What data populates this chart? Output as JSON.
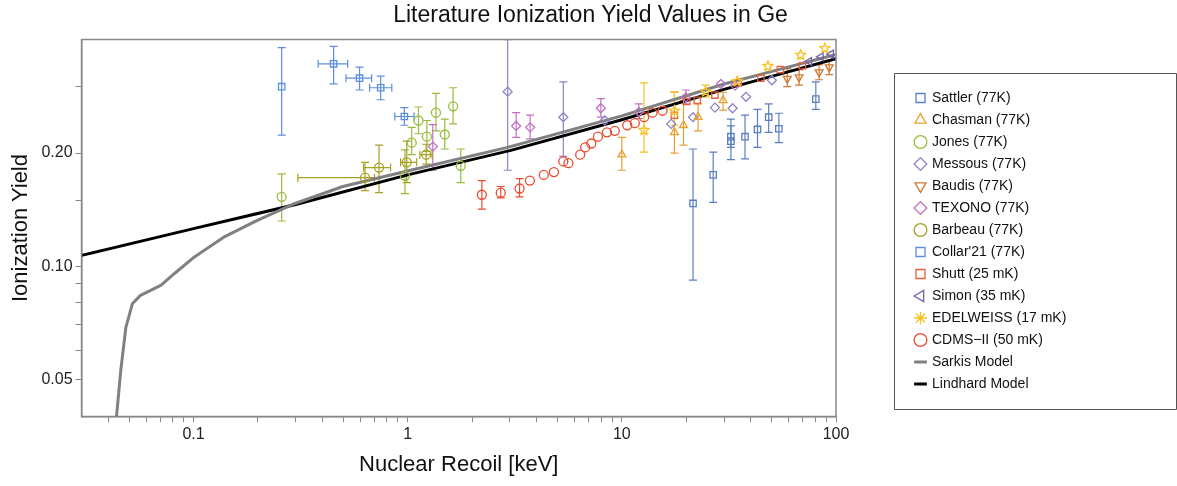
{
  "chart_data": {
    "type": "scatter",
    "title": "Literature Ionization Yield Values in Ge",
    "xlabel": "Nuclear Recoil [keV]",
    "ylabel": "Ionization Yield",
    "log": "xy",
    "grid": false,
    "legend": "right",
    "xlim": [
      0.03,
      100
    ],
    "xticks": [
      {
        "value": 0.04,
        "label": null
      },
      {
        "value": 0.05,
        "label": null
      },
      {
        "value": 0.06,
        "label": null
      },
      {
        "value": 0.07,
        "label": null
      },
      {
        "value": 0.08,
        "label": null
      },
      {
        "value": 0.09,
        "label": null
      },
      0.1,
      {
        "value": 0.2,
        "label": null
      },
      {
        "value": 0.3,
        "label": null
      },
      {
        "value": 0.4,
        "label": null
      },
      {
        "value": 0.5,
        "label": null
      },
      {
        "value": 0.6,
        "label": null
      },
      {
        "value": 0.7,
        "label": null
      },
      {
        "value": 0.8,
        "label": null
      },
      {
        "value": 0.9,
        "label": null
      },
      1,
      {
        "value": 2,
        "label": null
      },
      {
        "value": 3,
        "label": null
      },
      {
        "value": 4,
        "label": null
      },
      {
        "value": 5,
        "label": null
      },
      {
        "value": 6,
        "label": null
      },
      {
        "value": 7,
        "label": null
      },
      {
        "value": 8,
        "label": null
      },
      {
        "value": 9,
        "label": null
      },
      10,
      {
        "value": 20,
        "label": null
      },
      {
        "value": 30,
        "label": null
      },
      {
        "value": 40,
        "label": null
      },
      {
        "value": 50,
        "label": null
      },
      {
        "value": 60,
        "label": null
      },
      {
        "value": 70,
        "label": null
      },
      {
        "value": 80,
        "label": null
      },
      {
        "value": 90,
        "label": null
      },
      100
    ],
    "ylim": [
      0.04,
      0.4
    ],
    "yticks": [
      {
        "value": 0.05,
        "label": "0.05"
      },
      {
        "value": 0.06,
        "label": null
      },
      {
        "value": 0.07,
        "label": null
      },
      {
        "value": 0.08,
        "label": null
      },
      {
        "value": 0.09,
        "label": null
      },
      {
        "value": 0.1,
        "label": "0.10"
      },
      {
        "value": 0.15,
        "label": null
      },
      {
        "value": 0.2,
        "label": "0.20"
      },
      {
        "value": 0.3,
        "label": null
      }
    ],
    "series": [
      {
        "name": "Sattler (77K)",
        "color": "#5a7fc0",
        "marker": "square",
        "x": [
          21.5,
          26.7,
          32.3,
          32.3,
          37.6,
          43.0,
          48.5,
          54.1,
          80.5
        ],
        "values": [
          0.147,
          0.175,
          0.215,
          0.221,
          0.221,
          0.231,
          0.249,
          0.232,
          0.278
        ],
        "errors": [
          [
            0.092,
            0.205
          ],
          [
            0.148,
            0.201
          ],
          [
            0.192,
            0.246
          ],
          [
            0.207,
            0.236
          ],
          [
            0.193,
            0.252
          ],
          [
            0.207,
            0.261
          ],
          [
            0.227,
            0.27
          ],
          [
            0.213,
            0.255
          ],
          [
            0.261,
            0.309
          ]
        ]
      },
      {
        "name": "Chasman (77K)",
        "color": "#e8a030",
        "marker": "triangle",
        "x": [
          10.0,
          17.6,
          19.4,
          22.7,
          29.7
        ],
        "values": [
          0.198,
          0.227,
          0.237,
          0.249,
          0.276
        ],
        "errors": [
          [
            0.18,
            0.22
          ],
          [
            0.2,
            0.29
          ],
          [
            0.21,
            0.276
          ],
          [
            0.229,
            0.27
          ],
          [
            0.26,
            0.29
          ]
        ]
      },
      {
        "name": "Jones (77K)",
        "color": "#98bc3c",
        "marker": "circle",
        "x": [
          0.258,
          0.971,
          1.044,
          1.123,
          1.229,
          1.355,
          1.49,
          1.63,
          1.77
        ],
        "values": [
          0.153,
          0.174,
          0.213,
          0.244,
          0.221,
          0.256,
          0.224,
          0.266,
          0.185
        ],
        "errors": [
          [
            0.132,
            0.176
          ],
          [
            0.156,
            0.204
          ],
          [
            0.198,
            0.234
          ],
          [
            0.225,
            0.265
          ],
          [
            0.202,
            0.244
          ],
          [
            0.229,
            0.288
          ],
          [
            0.205,
            0.246
          ],
          [
            0.239,
            0.298
          ],
          [
            0.167,
            0.205
          ]
        ]
      },
      {
        "name": "Messous (77K)",
        "color": "#9080c8",
        "marker": "diamond",
        "x": [
          2.93,
          5.33,
          8.32,
          17.0,
          21.5,
          27.2,
          32.9,
          38.0,
          50.2
        ],
        "values": [
          0.291,
          0.249,
          0.244,
          0.239,
          0.249,
          0.264,
          0.263,
          0.282,
          0.312
        ],
        "errors": [
          [
            0.18,
            0.4
          ],
          [
            0.196,
            0.309
          ],
          null,
          null,
          null,
          null,
          null,
          null,
          null
        ]
      },
      {
        "name": "Baudis (77K)",
        "color": "#d07830",
        "marker": "triangle-down",
        "x": [
          59.2,
          67.2,
          83.4,
          93.0
        ],
        "values": [
          0.315,
          0.318,
          0.328,
          0.338
        ],
        "errors": [
          [
            0.3,
            0.335
          ],
          [
            0.303,
            0.333
          ],
          [
            0.313,
            0.343
          ],
          [
            0.323,
            0.353
          ]
        ]
      },
      {
        "name": "TEXONO (77K)",
        "color": "#c070c0",
        "marker": "diamond",
        "x": [
          1.31,
          3.21,
          3.73,
          7.98,
          12.0,
          19.9,
          29.0,
          33.8
        ],
        "values": [
          0.208,
          0.236,
          0.234,
          0.263,
          0.257,
          0.281,
          0.305,
          0.302
        ],
        "errors": [
          [
            0.18,
            0.238
          ],
          [
            0.22,
            0.256
          ],
          [
            0.218,
            0.252
          ],
          [
            0.249,
            0.279
          ],
          [
            0.247,
            0.27
          ],
          [
            0.27,
            0.294
          ],
          null,
          null
        ]
      },
      {
        "name": "Barbeau (77K)",
        "color": "#a8a020",
        "marker": "circle",
        "x": [
          0.632,
          0.735,
          0.99,
          1.22
        ],
        "values": [
          0.172,
          0.183,
          0.189,
          0.198
        ],
        "errors": [
          [
            0.159,
            0.189
          ],
          [
            0.157,
            0.21
          ],
          [
            0.167,
            0.215
          ],
          [
            0.187,
            0.211
          ]
        ],
        "xerrors": [
          [
            0.307,
            0.7
          ],
          [
            0.622,
            0.832
          ],
          [
            0.927,
            1.1
          ],
          [
            1.14,
            1.3
          ]
        ]
      },
      {
        "name": "Collar'21 (77K)",
        "color": "#5b8ee0",
        "marker": "square",
        "x": [
          0.258,
          0.451,
          0.596,
          0.748,
          0.965
        ],
        "values": [
          0.3,
          0.345,
          0.316,
          0.298,
          0.25
        ],
        "errors": [
          [
            0.223,
            0.381
          ],
          [
            0.305,
            0.384
          ],
          [
            0.294,
            0.338
          ],
          [
            0.277,
            0.32
          ],
          [
            0.237,
            0.264
          ]
        ],
        "xerrors": [
          null,
          [
            0.382,
            0.525
          ],
          [
            0.515,
            0.679
          ],
          [
            0.664,
            0.843
          ],
          [
            0.871,
            1.07
          ]
        ]
      },
      {
        "name": "Shutt (25 mK)",
        "color": "#e8603a",
        "marker": "square",
        "x": [
          17.6,
          20.1,
          22.5,
          27.2,
          34.9,
          44.6,
          55.0,
          69.7
        ],
        "values": [
          0.252,
          0.274,
          0.276,
          0.285,
          0.307,
          0.316,
          0.333,
          0.341
        ]
      },
      {
        "name": "Simon (35 mK)",
        "color": "#7060b0",
        "marker": "triangle-left",
        "x": [
          75,
          85,
          95
        ],
        "values": [
          0.35,
          0.36,
          0.366
        ]
      },
      {
        "name": "EDELWEISS (17 mK)",
        "color": "#f8c020",
        "marker": "star",
        "x": [
          12.7,
          17.6,
          24.6,
          34.6,
          48.1,
          68.4,
          88.7
        ],
        "values": [
          0.23,
          0.259,
          0.291,
          0.31,
          0.34,
          0.364,
          0.379
        ],
        "errors": [
          [
            0.201,
            0.307
          ],
          [
            0.237,
            0.291
          ],
          [
            0.282,
            0.303
          ],
          null,
          null,
          null,
          null
        ]
      },
      {
        "name": "CDMS−II (50 mK)",
        "color": "#e84c30",
        "marker": "circle",
        "x": [
          2.22,
          2.72,
          3.33,
          3.72,
          4.32,
          4.82,
          5.33,
          5.63,
          6.39,
          6.74,
          7.2,
          7.73,
          8.52,
          9.27,
          10.6,
          11.5,
          12.7,
          13.9,
          15.5
        ],
        "values": [
          0.155,
          0.157,
          0.161,
          0.169,
          0.175,
          0.178,
          0.19,
          0.188,
          0.198,
          0.207,
          0.212,
          0.221,
          0.227,
          0.229,
          0.237,
          0.24,
          0.249,
          0.256,
          0.259
        ],
        "errors": [
          [
            0.142,
            0.169
          ],
          [
            0.152,
            0.163
          ],
          [
            0.153,
            0.171
          ],
          null,
          null,
          null,
          null,
          null,
          null,
          null,
          null,
          null,
          null,
          null,
          null,
          null,
          null,
          null,
          null
        ]
      },
      {
        "name": "Sarkis Model",
        "type": "line",
        "color": "#808080",
        "x": [
          0.0437,
          0.0457,
          0.0483,
          0.0518,
          0.0565,
          0.0631,
          0.0706,
          0.0815,
          0.101,
          0.14,
          0.201,
          0.289,
          0.498,
          1.03,
          2.93,
          10,
          30,
          97.9
        ],
        "values": [
          0.04,
          0.0527,
          0.0688,
          0.0796,
          0.0838,
          0.0864,
          0.0892,
          0.0958,
          0.106,
          0.12,
          0.133,
          0.146,
          0.163,
          0.18,
          0.207,
          0.251,
          0.305,
          0.364
        ]
      },
      {
        "name": "Lindhard Model",
        "type": "line",
        "color": "#000000",
        "x": [
          0.03,
          0.1,
          0.3,
          1,
          3,
          10,
          30,
          100
        ],
        "values": [
          0.107,
          0.126,
          0.146,
          0.175,
          0.203,
          0.245,
          0.295,
          0.356
        ]
      }
    ]
  }
}
